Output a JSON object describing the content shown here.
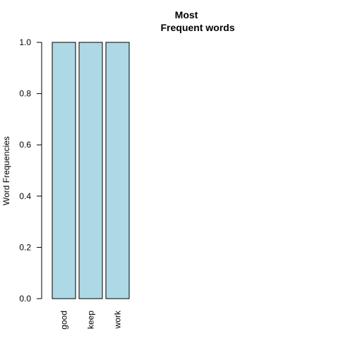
{
  "chart_data": {
    "type": "bar",
    "title": [
      "Most",
      "Frequent words"
    ],
    "ylabel": "Word Frequencies",
    "xlabel": "",
    "categories": [
      "good",
      "keep",
      "work"
    ],
    "values": [
      1.0,
      1.0,
      1.0
    ],
    "ylim": [
      0,
      1
    ],
    "yticks": [
      "0.0",
      "0.2",
      "0.4",
      "0.6",
      "0.8",
      "1.0"
    ],
    "bar_color": "#add8e6",
    "grid": false,
    "legend": false
  }
}
